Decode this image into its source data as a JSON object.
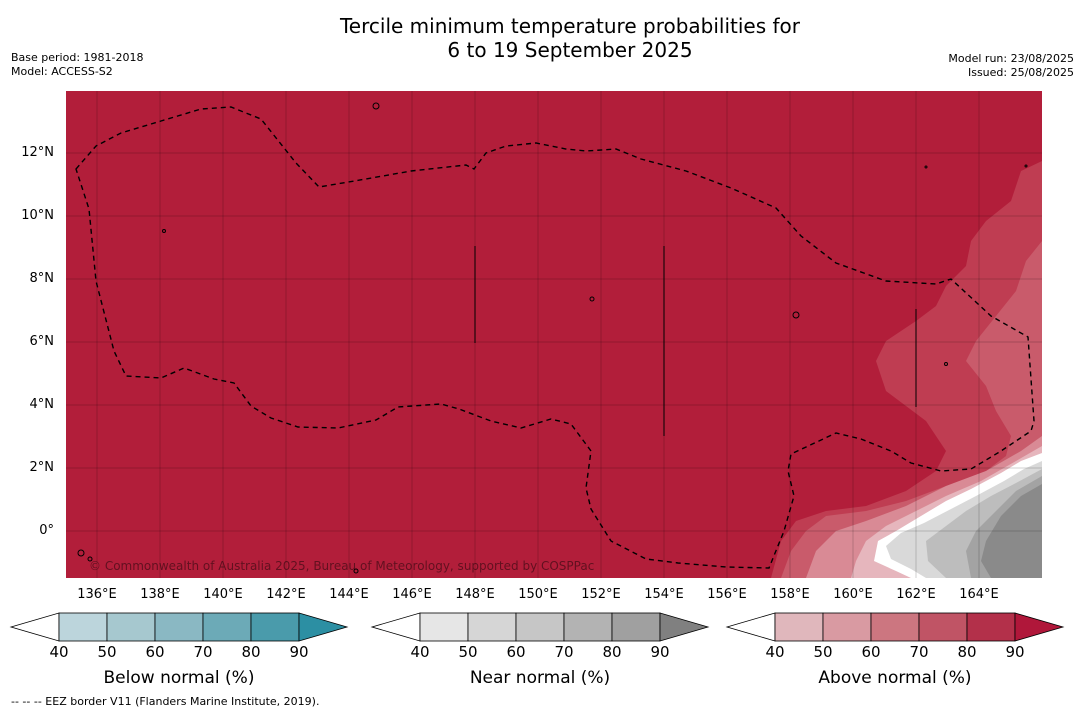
{
  "title": {
    "line1": "Tercile minimum temperature probabilities for",
    "line2": "6 to 19 September 2025"
  },
  "meta_left": {
    "base_period": "Base period: 1981-2018",
    "model": "Model: ACCESS-S2"
  },
  "meta_right": {
    "model_run": "Model run: 23/08/2025",
    "issued": "Issued: 25/08/2025"
  },
  "map": {
    "y_labels": [
      "12°N",
      "10°N",
      "8°N",
      "6°N",
      "4°N",
      "2°N",
      "0°"
    ],
    "x_labels": [
      "136°E",
      "138°E",
      "140°E",
      "142°E",
      "144°E",
      "146°E",
      "148°E",
      "150°E",
      "152°E",
      "154°E",
      "156°E",
      "158°E",
      "160°E",
      "162°E",
      "164°E"
    ],
    "copyright": "© Commonwealth of Australia 2025, Bureau of Meteorology, supported by COSPPac",
    "background_color": "#b21e3a",
    "region_description": "Federated States of Micronesia EEZ"
  },
  "colorbars": [
    {
      "id": "below",
      "title": "Below normal (%)",
      "ticks": [
        "40",
        "50",
        "60",
        "70",
        "80",
        "90"
      ],
      "colors": [
        "#ffffff",
        "#bcd5dc",
        "#a6c8cf",
        "#8ab8c3",
        "#6caab7",
        "#4a9bab",
        "#2c8fa3"
      ]
    },
    {
      "id": "near",
      "title": "Near normal (%)",
      "ticks": [
        "40",
        "50",
        "60",
        "70",
        "80",
        "90"
      ],
      "colors": [
        "#ffffff",
        "#e6e6e6",
        "#d6d6d6",
        "#c6c6c6",
        "#b3b3b3",
        "#a0a0a0",
        "#808080"
      ]
    },
    {
      "id": "above",
      "title": "Above normal (%)",
      "ticks": [
        "40",
        "50",
        "60",
        "70",
        "80",
        "90"
      ],
      "colors": [
        "#ffffff",
        "#e0b7bc",
        "#d99aa2",
        "#cc7680",
        "#c05465",
        "#b3304a",
        "#b0173a"
      ]
    }
  ],
  "footnote": "--  --  -- EEZ border V11 (Flanders Marine Institute, 2019)."
}
